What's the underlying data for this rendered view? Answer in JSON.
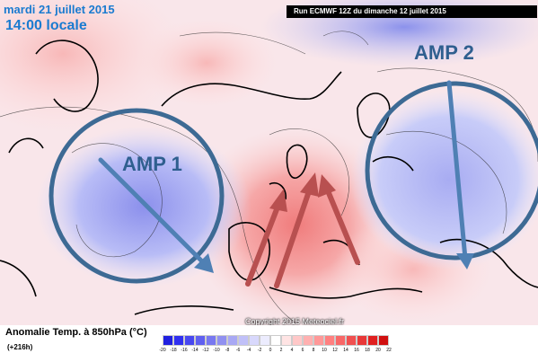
{
  "header": {
    "date": "mardi 21 juillet 2015",
    "time": "14:00 locale",
    "run": "Run ECMWF 12Z du dimanche 12 juillet 2015"
  },
  "copyright": "Copyright 2015 Meteociel.fr",
  "legend": {
    "title": "Anomalie Temp. à 850hPa (°C)",
    "subtitle": "(+216h)",
    "ticks": [
      "-20",
      "-18",
      "-16",
      "-14",
      "-12",
      "-10",
      "-8",
      "-6",
      "-4",
      "-2",
      "0",
      "2",
      "4",
      "6",
      "8",
      "10",
      "12",
      "14",
      "16",
      "18",
      "20",
      "22"
    ],
    "colors": [
      "#2020e0",
      "#3030f0",
      "#4848f0",
      "#6060f0",
      "#7878f0",
      "#9090f0",
      "#a8a8f4",
      "#c0c0f8",
      "#d8d8fc",
      "#ececfe",
      "#ffffff",
      "#ffe4e4",
      "#ffc8c8",
      "#ffb0b0",
      "#ff9898",
      "#ff8080",
      "#f86868",
      "#f05050",
      "#e83838",
      "#e02020",
      "#d01010"
    ]
  },
  "annotations": {
    "amp1": "AMP 1",
    "amp2": "AMP 2"
  },
  "colors": {
    "cold": "#b8bef8",
    "warm": "#f8b8b8",
    "circle": "#3d6a94",
    "red_arrow": "#b85050"
  }
}
